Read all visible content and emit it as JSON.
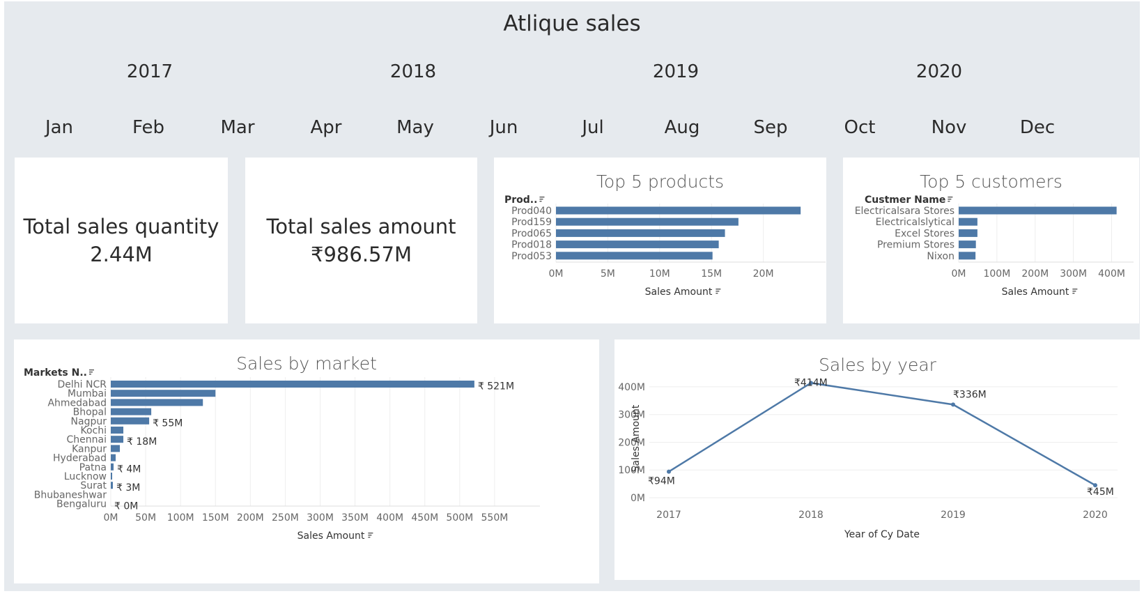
{
  "dashboard": {
    "title": "Atlique sales",
    "years": [
      "2017",
      "2018",
      "2019",
      "2020"
    ],
    "months": [
      "Jan",
      "Feb",
      "Mar",
      "Apr",
      "May",
      "Jun",
      "Jul",
      "Aug",
      "Sep",
      "Oct",
      "Nov",
      "Dec"
    ]
  },
  "kpis": {
    "quantity_label": "Total sales quantity",
    "quantity_value": "2.44M",
    "amount_label": "Total sales amount",
    "amount_value": "₹986.57M"
  },
  "sort_icon": "sort-descending-icon",
  "colors": {
    "bar": "#4e79a7",
    "background": "#e6eaee",
    "panel": "#ffffff"
  },
  "chart_data": [
    {
      "type": "bar",
      "title": "Top 5 products",
      "ylabel": "Prod..",
      "xlabel": "Sales Amount",
      "categories": [
        "Prod040",
        "Prod159",
        "Prod065",
        "Prod018",
        "Prod053"
      ],
      "values": [
        23.6,
        17.6,
        16.3,
        15.7,
        15.1
      ],
      "xlim": [
        0,
        25
      ],
      "ticks": [
        "0M",
        "5M",
        "10M",
        "15M",
        "20M"
      ],
      "tick_values": [
        0,
        5,
        10,
        15,
        20
      ]
    },
    {
      "type": "bar",
      "title": "Top 5 customers",
      "ylabel": "Custmer Name",
      "xlabel": "Sales Amount",
      "categories": [
        "Electricalsara Stores",
        "Electricalslytical",
        "Excel Stores",
        "Premium Stores",
        "Nixon"
      ],
      "values": [
        413,
        49,
        49,
        45,
        44
      ],
      "xlim": [
        0,
        430
      ],
      "ticks": [
        "0M",
        "100M",
        "200M",
        "300M",
        "400M"
      ],
      "tick_values": [
        0,
        100,
        200,
        300,
        400
      ]
    },
    {
      "type": "bar",
      "title": "Sales by market",
      "ylabel": "Markets N..",
      "xlabel": "Sales Amount",
      "categories": [
        "Delhi NCR",
        "Mumbai",
        "Ahmedabad",
        "Bhopal",
        "Nagpur",
        "Kochi",
        "Chennai",
        "Kanpur",
        "Hyderabad",
        "Patna",
        "Lucknow",
        "Surat",
        "Bhubaneshwar",
        "Bengaluru"
      ],
      "values": [
        521,
        150,
        132,
        58,
        55,
        18,
        18,
        13,
        7,
        4,
        2,
        3,
        0,
        0
      ],
      "data_labels": [
        "₹ 521M",
        "",
        "",
        "",
        "₹ 55M",
        "",
        "₹ 18M",
        "",
        "",
        "₹ 4M",
        "",
        "₹ 3M",
        "",
        "₹ 0M"
      ],
      "xlim": [
        0,
        600
      ],
      "ticks": [
        "0M",
        "50M",
        "100M",
        "150M",
        "200M",
        "250M",
        "300M",
        "350M",
        "400M",
        "450M",
        "500M",
        "550M"
      ],
      "tick_values": [
        0,
        50,
        100,
        150,
        200,
        250,
        300,
        350,
        400,
        450,
        500,
        550
      ]
    },
    {
      "type": "line",
      "title": "Sales by year",
      "xlabel": "Year of Cy Date",
      "ylabel": "Sales Amount",
      "x": [
        "2017",
        "2018",
        "2019",
        "2020"
      ],
      "values": [
        94,
        414,
        336,
        45
      ],
      "data_labels": [
        "₹94M",
        "₹414M",
        "₹336M",
        "₹45M"
      ],
      "ylim": [
        0,
        430
      ],
      "ticks": [
        "0M",
        "100M",
        "200M",
        "300M",
        "400M"
      ],
      "tick_values": [
        0,
        100,
        200,
        300,
        400
      ]
    }
  ]
}
